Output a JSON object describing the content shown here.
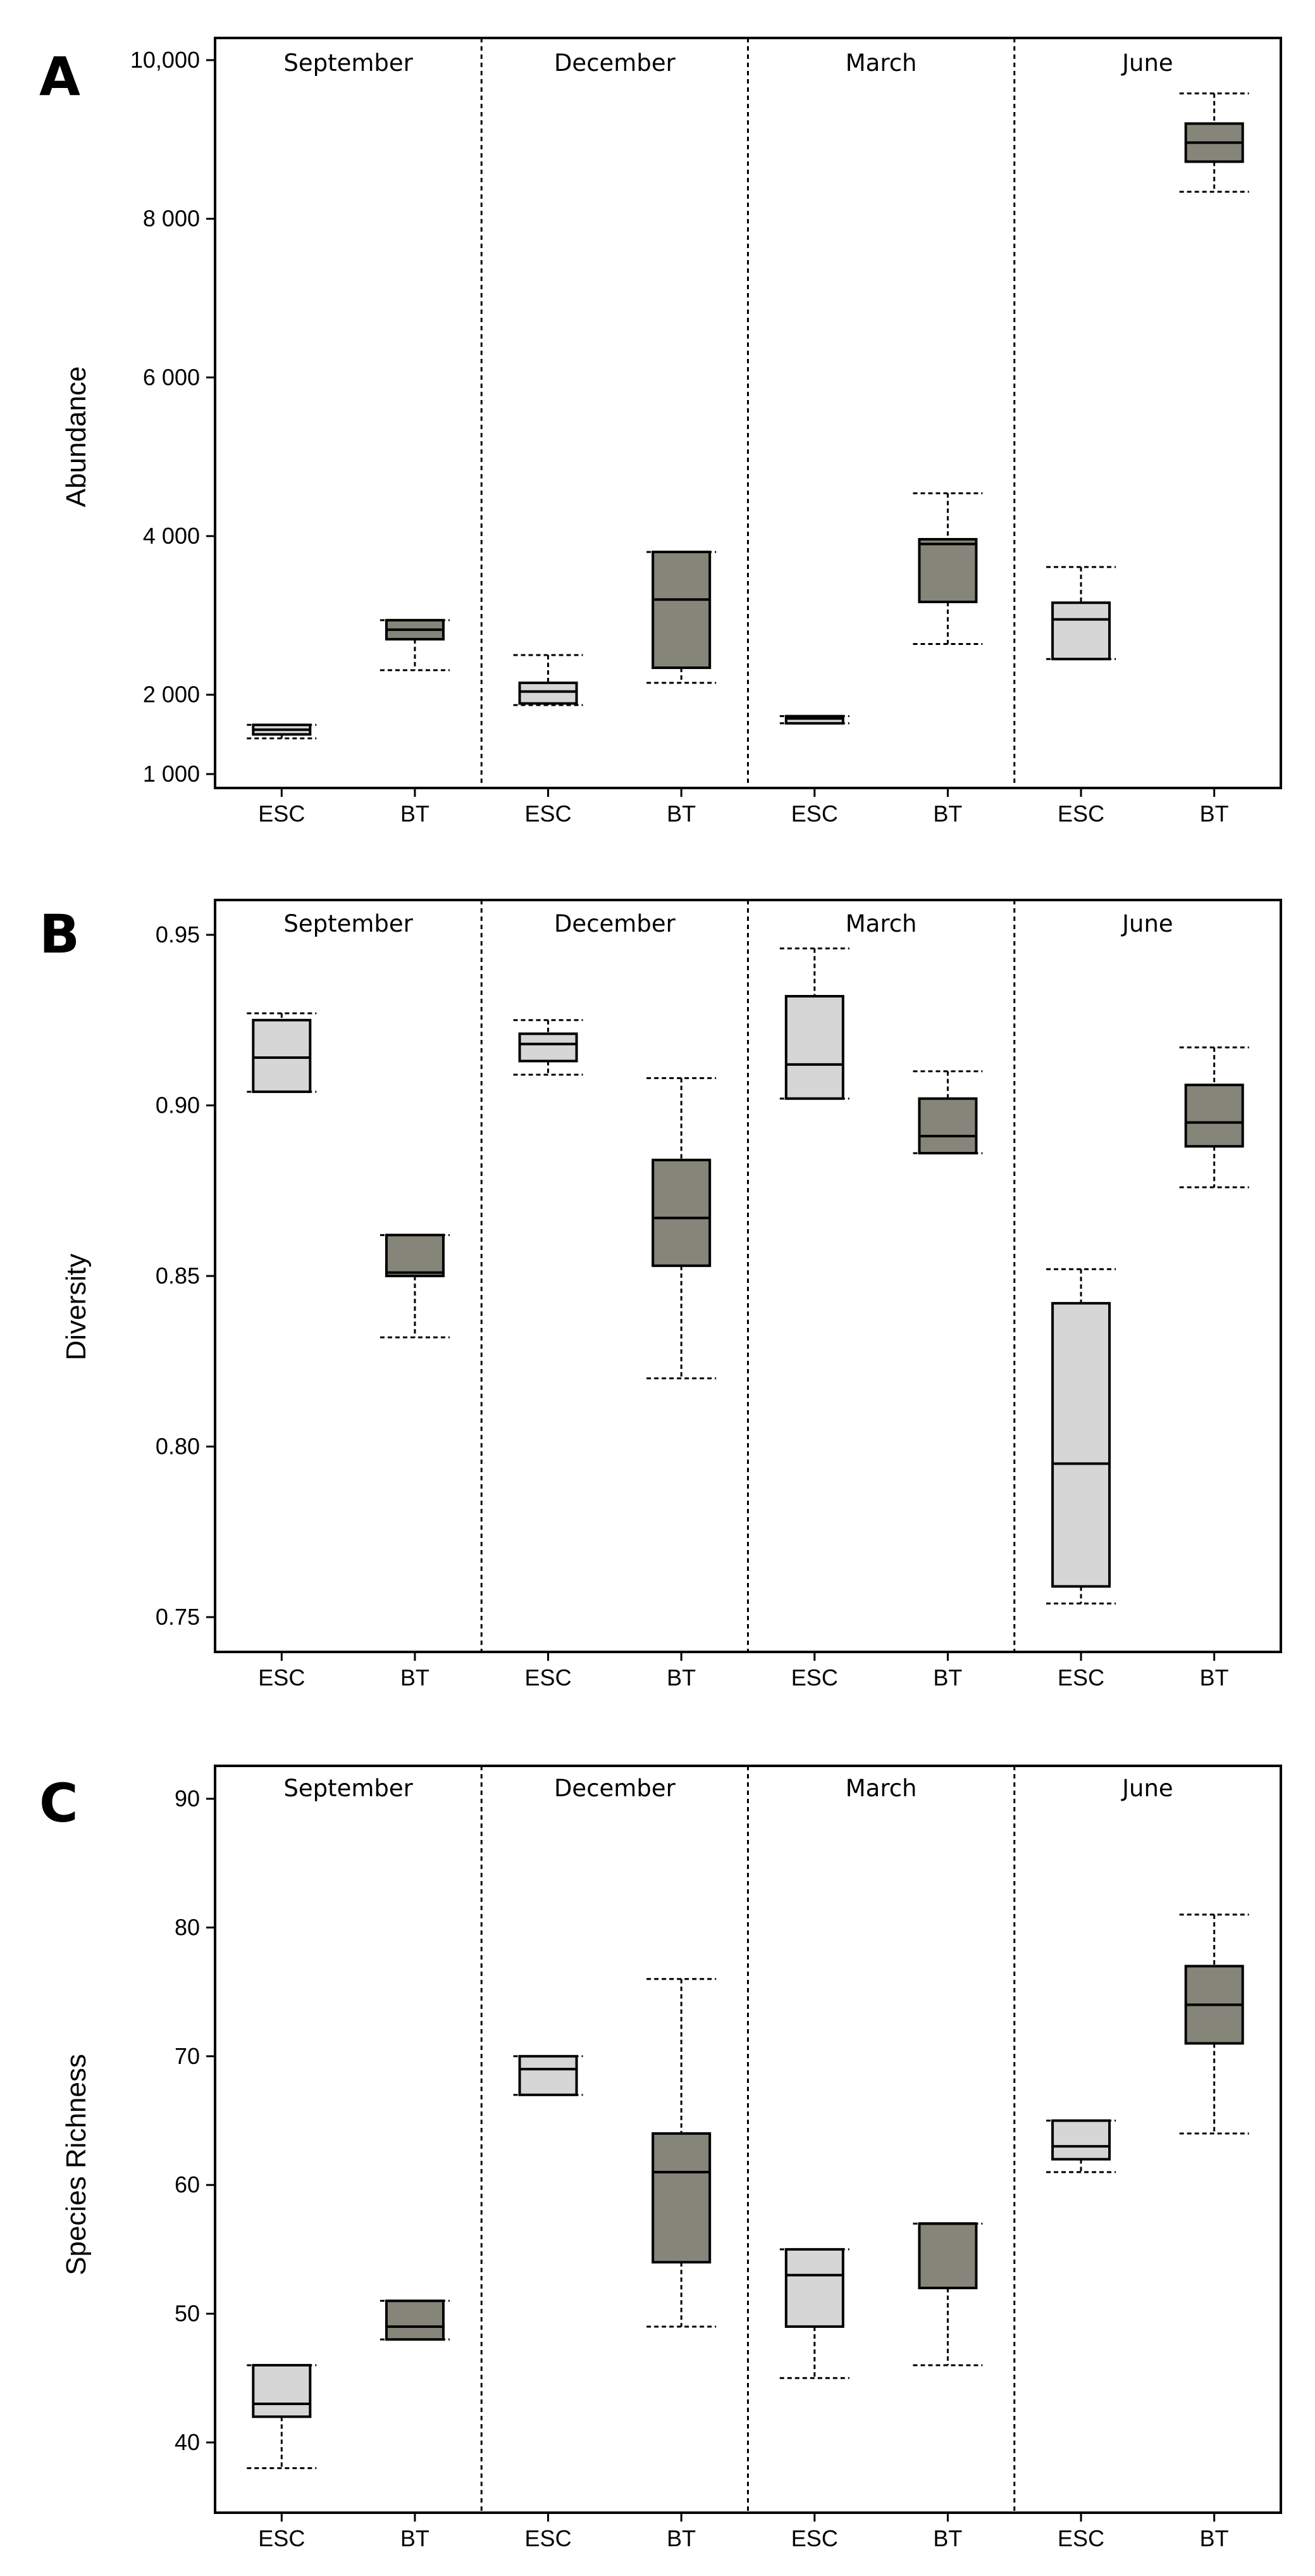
{
  "colors": {
    "ESC": "#d6d6d6",
    "BT": "#858579"
  },
  "chart_data": [
    {
      "type": "boxplot",
      "panel": "A",
      "ylabel": "Abundance",
      "xlabel": "",
      "ylim": [
        1000,
        10000
      ],
      "yticks": [
        {
          "value": 1000,
          "label": "1 000"
        },
        {
          "value": 2000,
          "label": "2 000"
        },
        {
          "value": 4000,
          "label": "4 000"
        },
        {
          "value": 6000,
          "label": "6 000"
        },
        {
          "value": 8000,
          "label": "8 000"
        },
        {
          "value": 10000,
          "label": "10,000"
        }
      ],
      "seasons": [
        {
          "name": "September",
          "boxes": [
            {
              "group": "ESC",
              "whisker_low": 1450,
              "q1": 1500,
              "median": 1560,
              "q3": 1620,
              "whisker_high": 1620
            },
            {
              "group": "BT",
              "whisker_low": 2310,
              "q1": 2700,
              "median": 2820,
              "q3": 2940,
              "whisker_high": 2940
            }
          ]
        },
        {
          "name": "December",
          "boxes": [
            {
              "group": "ESC",
              "whisker_low": 1870,
              "q1": 1890,
              "median": 2040,
              "q3": 2150,
              "whisker_high": 2500
            },
            {
              "group": "BT",
              "whisker_low": 2150,
              "q1": 2340,
              "median": 3200,
              "q3": 3800,
              "whisker_high": 3800
            }
          ]
        },
        {
          "name": "March",
          "boxes": [
            {
              "group": "ESC",
              "whisker_low": 1640,
              "q1": 1640,
              "median": 1700,
              "q3": 1730,
              "whisker_high": 1730
            },
            {
              "group": "BT",
              "whisker_low": 2640,
              "q1": 3170,
              "median": 3900,
              "q3": 3960,
              "whisker_high": 4540
            }
          ]
        },
        {
          "name": "June",
          "boxes": [
            {
              "group": "ESC",
              "whisker_low": 2450,
              "q1": 2450,
              "median": 2950,
              "q3": 3160,
              "whisker_high": 3610
            },
            {
              "group": "BT",
              "whisker_low": 8340,
              "q1": 8720,
              "median": 8960,
              "q3": 9200,
              "whisker_high": 9580
            }
          ]
        }
      ]
    },
    {
      "type": "boxplot",
      "panel": "B",
      "ylabel": "Diversity",
      "xlabel": "",
      "ylim": [
        0.74,
        0.96
      ],
      "yticks": [
        {
          "value": 0.75,
          "label": "0.75"
        },
        {
          "value": 0.8,
          "label": "0.80"
        },
        {
          "value": 0.85,
          "label": "0.85"
        },
        {
          "value": 0.9,
          "label": "0.90"
        },
        {
          "value": 0.95,
          "label": "0.95"
        }
      ],
      "seasons": [
        {
          "name": "September",
          "boxes": [
            {
              "group": "ESC",
              "whisker_low": 0.904,
              "q1": 0.904,
              "median": 0.914,
              "q3": 0.925,
              "whisker_high": 0.927
            },
            {
              "group": "BT",
              "whisker_low": 0.832,
              "q1": 0.85,
              "median": 0.851,
              "q3": 0.862,
              "whisker_high": 0.862
            }
          ]
        },
        {
          "name": "December",
          "boxes": [
            {
              "group": "ESC",
              "whisker_low": 0.909,
              "q1": 0.913,
              "median": 0.918,
              "q3": 0.921,
              "whisker_high": 0.925
            },
            {
              "group": "BT",
              "whisker_low": 0.82,
              "q1": 0.853,
              "median": 0.867,
              "q3": 0.884,
              "whisker_high": 0.908
            }
          ]
        },
        {
          "name": "March",
          "boxes": [
            {
              "group": "ESC",
              "whisker_low": 0.902,
              "q1": 0.902,
              "median": 0.912,
              "q3": 0.932,
              "whisker_high": 0.946
            },
            {
              "group": "BT",
              "whisker_low": 0.886,
              "q1": 0.886,
              "median": 0.891,
              "q3": 0.902,
              "whisker_high": 0.91
            }
          ]
        },
        {
          "name": "June",
          "boxes": [
            {
              "group": "ESC",
              "whisker_low": 0.754,
              "q1": 0.759,
              "median": 0.795,
              "q3": 0.842,
              "whisker_high": 0.852
            },
            {
              "group": "BT",
              "whisker_low": 0.876,
              "q1": 0.888,
              "median": 0.895,
              "q3": 0.906,
              "whisker_high": 0.917
            }
          ]
        }
      ]
    },
    {
      "type": "boxplot",
      "panel": "C",
      "ylabel": "Species Richness",
      "xlabel": "",
      "ylim": [
        35,
        92
      ],
      "yticks": [
        {
          "value": 40,
          "label": "40"
        },
        {
          "value": 50,
          "label": "50"
        },
        {
          "value": 60,
          "label": "60"
        },
        {
          "value": 70,
          "label": "70"
        },
        {
          "value": 80,
          "label": "80"
        },
        {
          "value": 90,
          "label": "90"
        }
      ],
      "seasons": [
        {
          "name": "September",
          "boxes": [
            {
              "group": "ESC",
              "whisker_low": 38,
              "q1": 42,
              "median": 43,
              "q3": 46,
              "whisker_high": 46
            },
            {
              "group": "BT",
              "whisker_low": 48,
              "q1": 48,
              "median": 49,
              "q3": 51,
              "whisker_high": 51
            }
          ]
        },
        {
          "name": "December",
          "boxes": [
            {
              "group": "ESC",
              "whisker_low": 67,
              "q1": 67,
              "median": 69,
              "q3": 70,
              "whisker_high": 70
            },
            {
              "group": "BT",
              "whisker_low": 49,
              "q1": 54,
              "median": 61,
              "q3": 64,
              "whisker_high": 76
            }
          ]
        },
        {
          "name": "March",
          "boxes": [
            {
              "group": "ESC",
              "whisker_low": 45,
              "q1": 49,
              "median": 53,
              "q3": 55,
              "whisker_high": 55
            },
            {
              "group": "BT",
              "whisker_low": 46,
              "q1": 52,
              "median": 57,
              "q3": 57,
              "whisker_high": 57
            }
          ]
        },
        {
          "name": "June",
          "boxes": [
            {
              "group": "ESC",
              "whisker_low": 61,
              "q1": 62,
              "median": 63,
              "q3": 65,
              "whisker_high": 65
            },
            {
              "group": "BT",
              "whisker_low": 64,
              "q1": 71,
              "median": 74,
              "q3": 77,
              "whisker_high": 81
            }
          ]
        }
      ]
    }
  ]
}
